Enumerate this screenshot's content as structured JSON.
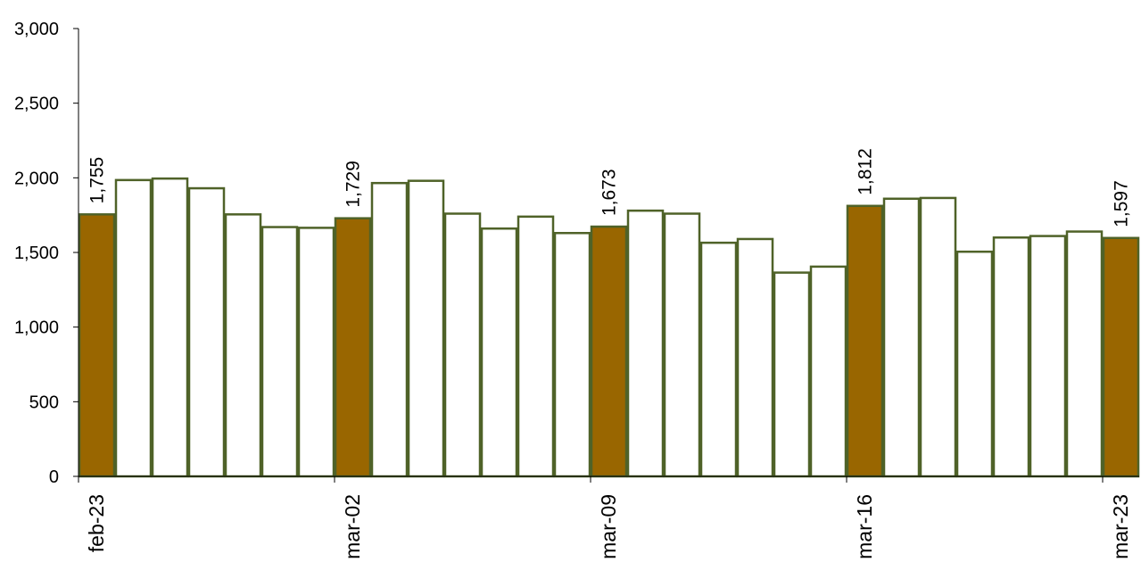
{
  "chart_data": {
    "type": "bar",
    "title": "",
    "xlabel": "",
    "ylabel": "",
    "ylim": [
      0,
      3000
    ],
    "yticks": [
      "0",
      "500",
      "1,000",
      "1,500",
      "2,000",
      "2,500",
      "3,000"
    ],
    "ytick_values": [
      0,
      500,
      1000,
      1500,
      2000,
      2500,
      3000
    ],
    "categories": [
      "feb-23",
      "",
      "",
      "",
      "",
      "",
      "",
      "mar-02",
      "",
      "",
      "",
      "",
      "",
      "",
      "mar-09",
      "",
      "",
      "",
      "",
      "",
      "",
      "mar-16",
      "",
      "",
      "",
      "",
      "",
      "",
      "mar-23"
    ],
    "values": [
      1755,
      1985,
      1995,
      1930,
      1755,
      1670,
      1665,
      1729,
      1965,
      1980,
      1760,
      1660,
      1740,
      1630,
      1673,
      1780,
      1760,
      1565,
      1590,
      1365,
      1405,
      1812,
      1860,
      1865,
      1505,
      1600,
      1610,
      1640,
      1597
    ],
    "highlighted": [
      true,
      false,
      false,
      false,
      false,
      false,
      false,
      true,
      false,
      false,
      false,
      false,
      false,
      false,
      true,
      false,
      false,
      false,
      false,
      false,
      false,
      true,
      false,
      false,
      false,
      false,
      false,
      false,
      true
    ],
    "data_labels": [
      "1,755",
      "",
      "",
      "",
      "",
      "",
      "",
      "1,729",
      "",
      "",
      "",
      "",
      "",
      "",
      "1,673",
      "",
      "",
      "",
      "",
      "",
      "",
      "1,812",
      "",
      "",
      "",
      "",
      "",
      "",
      "1,597"
    ],
    "grid": false,
    "legend": "none",
    "colors": {
      "highlight_fill": "#996600",
      "normal_fill": "#ffffff",
      "bar_stroke": "#4f6228",
      "axis": "#000000"
    }
  }
}
